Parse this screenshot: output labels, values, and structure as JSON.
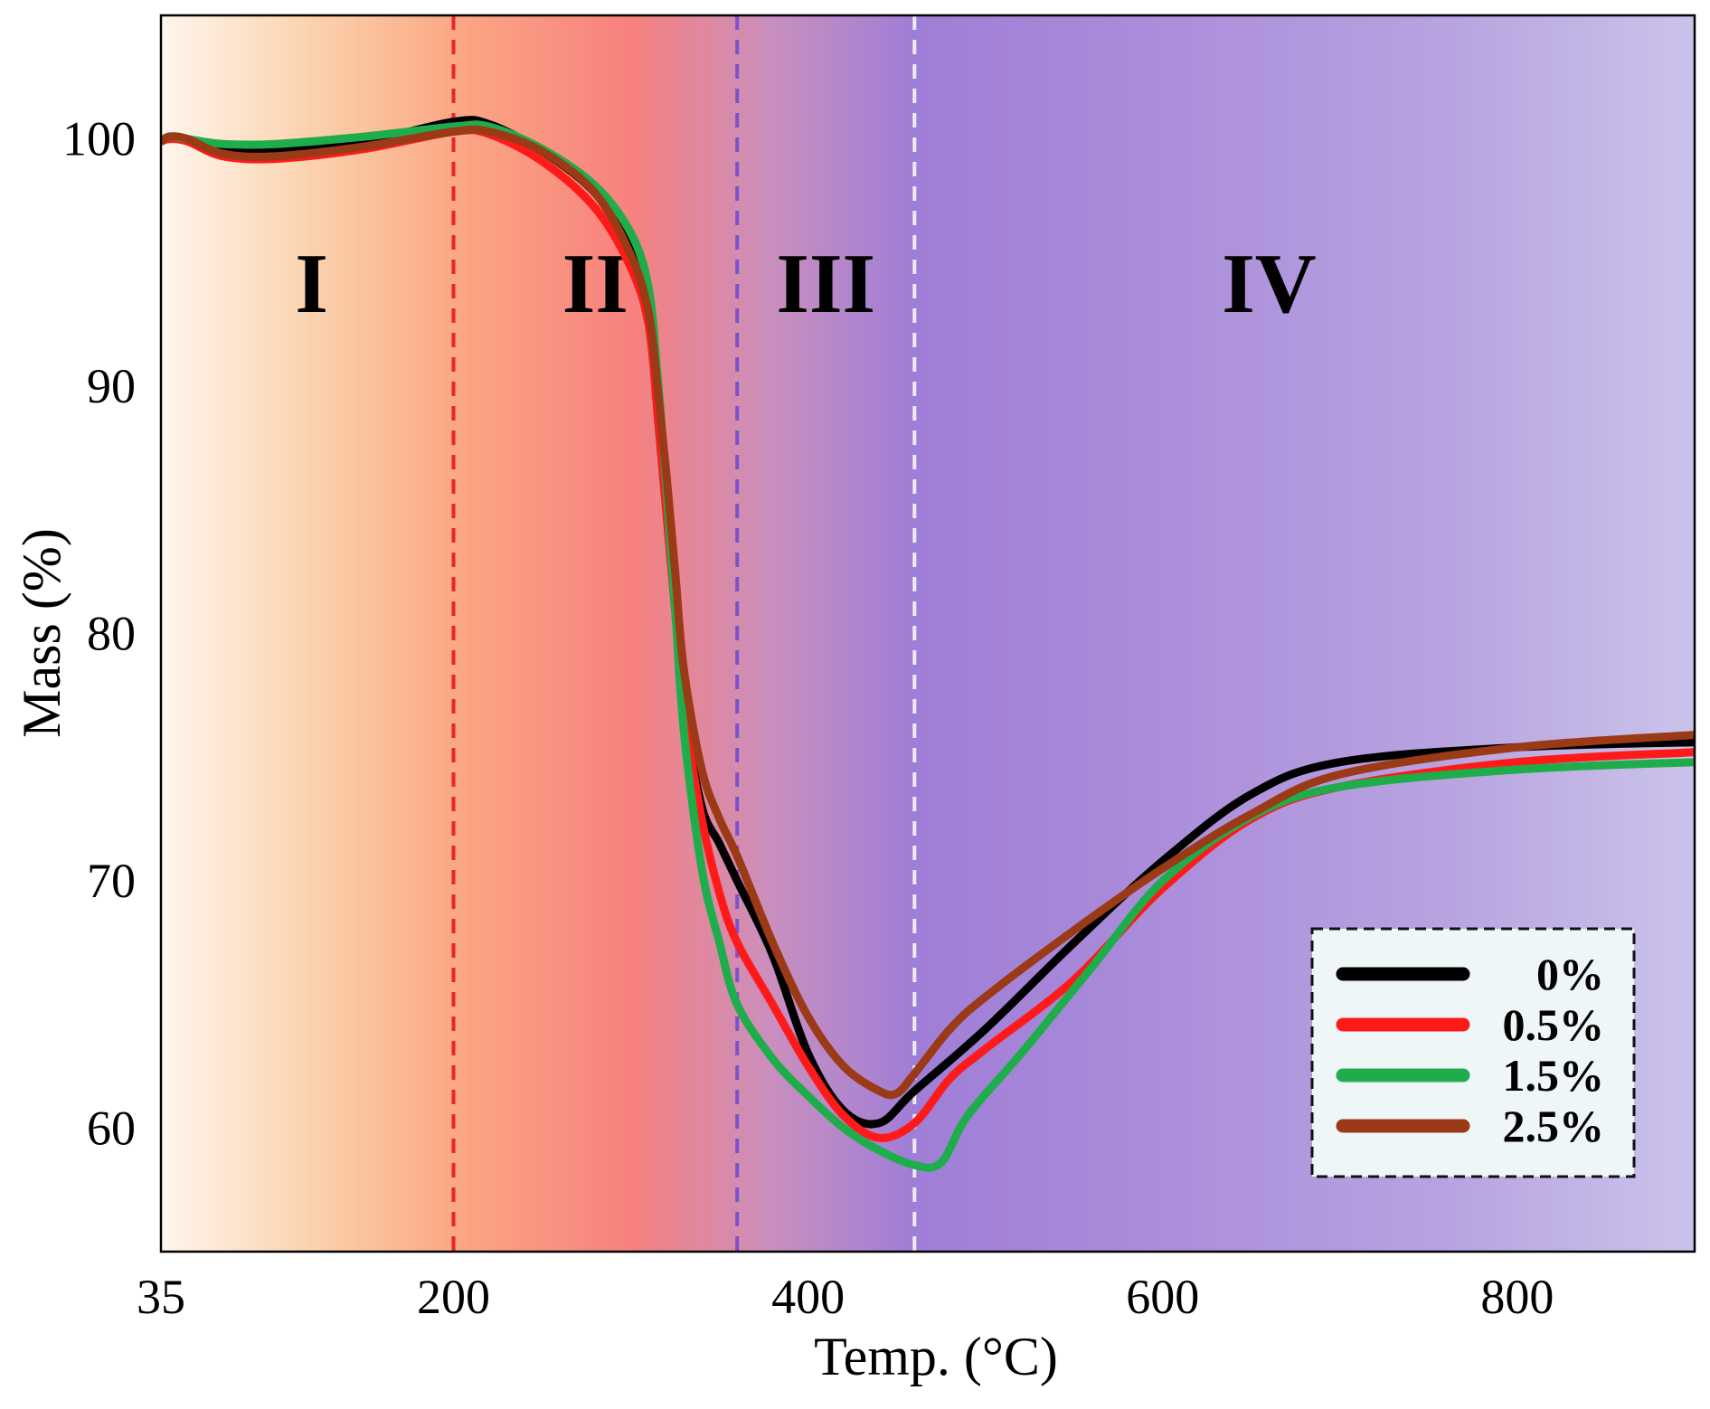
{
  "chart_data": {
    "type": "line",
    "title": "",
    "xlabel": "Temp. (°C)",
    "ylabel": "Mass (%)",
    "xlim": [
      35,
      900
    ],
    "ylim": [
      55,
      105
    ],
    "xticks": [
      {
        "value": 35,
        "label": "35"
      },
      {
        "value": 200,
        "label": "200"
      },
      {
        "value": 400,
        "label": "400"
      },
      {
        "value": 600,
        "label": "600"
      },
      {
        "value": 800,
        "label": "800"
      }
    ],
    "yticks": [
      {
        "value": 60,
        "label": "60"
      },
      {
        "value": 70,
        "label": "70"
      },
      {
        "value": 80,
        "label": "80"
      },
      {
        "value": 90,
        "label": "90"
      },
      {
        "value": 100,
        "label": "100"
      }
    ],
    "grid": false,
    "legend_position": "bottom-right",
    "regions": [
      {
        "label": "I",
        "x_start": 35,
        "x_end": 200,
        "label_x": 120
      },
      {
        "label": "II",
        "x_start": 200,
        "x_end": 360,
        "label_x": 280
      },
      {
        "label": "III",
        "x_start": 360,
        "x_end": 460,
        "label_x": 410
      },
      {
        "label": "IV",
        "x_start": 460,
        "x_end": 900,
        "label_x": 660
      }
    ],
    "region_label_y": 93,
    "boundaries": [
      {
        "x": 200,
        "color": "#e8252a"
      },
      {
        "x": 360,
        "color": "#7a52cc"
      },
      {
        "x": 460,
        "color": "#eceaf5"
      }
    ],
    "background_gradient": [
      {
        "x": 35,
        "color": "#fff6ee"
      },
      {
        "x": 120,
        "color": "#fbd2ad"
      },
      {
        "x": 200,
        "color": "#fba884"
      },
      {
        "x": 300,
        "color": "#f7817e"
      },
      {
        "x": 380,
        "color": "#c98fbe"
      },
      {
        "x": 460,
        "color": "#9f7ed7"
      },
      {
        "x": 560,
        "color": "#a888d9"
      },
      {
        "x": 760,
        "color": "#b8a3e0"
      },
      {
        "x": 900,
        "color": "#cbc3eb"
      }
    ],
    "series": [
      {
        "name": "0%",
        "color": "#000000",
        "x": [
          35,
          40,
          50,
          70,
          100,
          150,
          200,
          220,
          250,
          280,
          300,
          310,
          315,
          320,
          325,
          330,
          340,
          350,
          360,
          380,
          400,
          420,
          440,
          460,
          500,
          550,
          600,
          650,
          700,
          800,
          900
        ],
        "y": [
          99.9,
          100.1,
          100.0,
          99.6,
          99.5,
          99.9,
          100.7,
          100.6,
          99.5,
          97.8,
          95.5,
          93,
          89,
          85,
          81,
          77,
          73,
          71.5,
          70,
          67,
          63,
          60.7,
          60.2,
          61.5,
          64,
          67.5,
          70.8,
          73.5,
          74.8,
          75.4,
          75.6
        ]
      },
      {
        "name": "0.5%",
        "color": "#ff1a1a",
        "x": [
          35,
          40,
          50,
          70,
          100,
          150,
          200,
          220,
          250,
          280,
          300,
          310,
          315,
          320,
          325,
          330,
          340,
          350,
          360,
          380,
          400,
          420,
          440,
          460,
          480,
          500,
          550,
          600,
          650,
          700,
          800,
          900
        ],
        "y": [
          99.9,
          100.0,
          99.9,
          99.3,
          99.2,
          99.6,
          100.3,
          100.2,
          99.1,
          97.2,
          94.8,
          92.5,
          89,
          85,
          81,
          77,
          72.5,
          69.5,
          67.5,
          65,
          62.5,
          60.5,
          59.6,
          60.2,
          62,
          63.2,
          66,
          69.7,
          72.5,
          73.8,
          74.8,
          75.2
        ]
      },
      {
        "name": "1.5%",
        "color": "#1fad4c",
        "x": [
          35,
          40,
          50,
          70,
          100,
          150,
          200,
          220,
          250,
          280,
          300,
          310,
          315,
          320,
          325,
          330,
          340,
          350,
          360,
          380,
          400,
          420,
          440,
          460,
          475,
          490,
          520,
          560,
          600,
          650,
          700,
          800,
          900
        ],
        "y": [
          99.9,
          100.1,
          100.0,
          99.8,
          99.8,
          100.1,
          100.5,
          100.5,
          99.6,
          98.1,
          96.2,
          94,
          90.5,
          86,
          81,
          76,
          70.5,
          67.5,
          65,
          62.8,
          61.3,
          60,
          59.1,
          58.5,
          58.6,
          60.5,
          63,
          66.5,
          70,
          72.6,
          73.8,
          74.5,
          74.8
        ]
      },
      {
        "name": "2.5%",
        "color": "#9b3a17",
        "x": [
          35,
          40,
          50,
          70,
          100,
          150,
          200,
          220,
          250,
          280,
          300,
          310,
          315,
          320,
          325,
          330,
          340,
          350,
          360,
          380,
          400,
          420,
          440,
          450,
          460,
          480,
          500,
          550,
          600,
          650,
          700,
          800,
          900
        ],
        "y": [
          99.9,
          100.1,
          100.0,
          99.4,
          99.3,
          99.7,
          100.3,
          100.3,
          99.5,
          97.8,
          95.3,
          93,
          90,
          86.5,
          82.5,
          78.5,
          74.5,
          72.5,
          71,
          67.5,
          64.5,
          62.5,
          61.5,
          61.4,
          62.2,
          64,
          65.3,
          68,
          70.5,
          72.7,
          74.3,
          75.4,
          75.9
        ]
      }
    ]
  }
}
